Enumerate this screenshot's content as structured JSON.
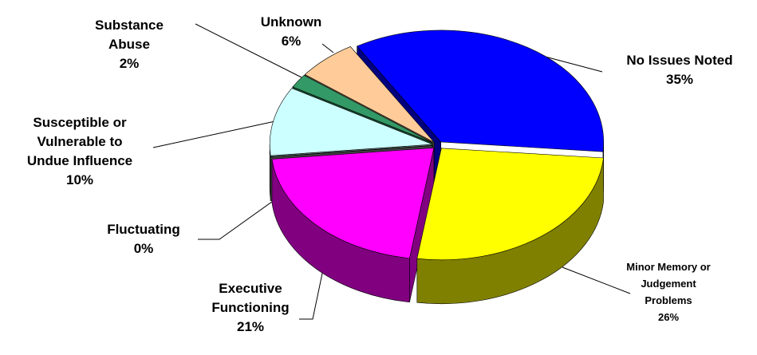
{
  "chart_data": {
    "type": "pie",
    "categories": [
      "No Issues Noted",
      "Minor Memory or Judgement Problems",
      "Executive Functioning",
      "Fluctuating",
      "Susceptible or Vulnerable to Undue Influence",
      "Substance Abuse",
      "Unknown"
    ],
    "values": [
      35,
      26,
      21,
      0,
      10,
      2,
      6
    ],
    "value_labels": [
      "35%",
      "26%",
      "21%",
      "0%",
      "10%",
      "2%",
      "6%"
    ],
    "colors": [
      "#0000ff",
      "#ffff00",
      "#ff00ff",
      "#808080",
      "#ccffff",
      "#339966",
      "#ffcc99"
    ]
  }
}
